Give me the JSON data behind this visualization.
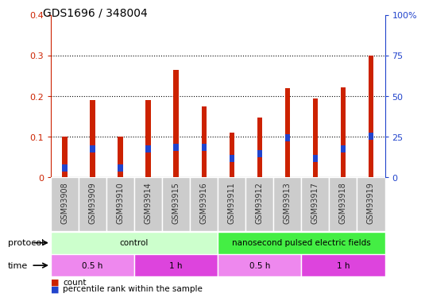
{
  "title": "GDS1696 / 348004",
  "samples": [
    "GSM93908",
    "GSM93909",
    "GSM93910",
    "GSM93914",
    "GSM93915",
    "GSM93916",
    "GSM93911",
    "GSM93912",
    "GSM93913",
    "GSM93917",
    "GSM93918",
    "GSM93919"
  ],
  "count_values": [
    0.1,
    0.19,
    0.1,
    0.19,
    0.265,
    0.175,
    0.11,
    0.148,
    0.22,
    0.195,
    0.222,
    0.3
  ],
  "percentile_bottom": [
    0.015,
    0.062,
    0.015,
    0.062,
    0.065,
    0.065,
    0.037,
    0.05,
    0.088,
    0.037,
    0.062,
    0.092
  ],
  "percentile_height": [
    0.018,
    0.018,
    0.018,
    0.018,
    0.018,
    0.018,
    0.018,
    0.018,
    0.018,
    0.018,
    0.018,
    0.018
  ],
  "count_color": "#cc2200",
  "percentile_color": "#2244cc",
  "bar_width": 0.18,
  "ylim_left": [
    0,
    0.4
  ],
  "ylim_right": [
    0,
    100
  ],
  "yticks_left": [
    0,
    0.1,
    0.2,
    0.3,
    0.4
  ],
  "yticks_right": [
    0,
    25,
    50,
    75,
    100
  ],
  "ytick_labels_left": [
    "0",
    "0.1",
    "0.2",
    "0.3",
    "0.4"
  ],
  "ytick_labels_right": [
    "0",
    "25",
    "50",
    "75",
    "100%"
  ],
  "bg_color": "#ffffff",
  "protocol_row": [
    {
      "label": "control",
      "start": 0,
      "end": 6,
      "color": "#ccffcc"
    },
    {
      "label": "nanosecond pulsed electric fields",
      "start": 6,
      "end": 12,
      "color": "#44ee44"
    }
  ],
  "time_row": [
    {
      "label": "0.5 h",
      "start": 0,
      "end": 3,
      "color": "#ee88ee"
    },
    {
      "label": "1 h",
      "start": 3,
      "end": 6,
      "color": "#dd44dd"
    },
    {
      "label": "0.5 h",
      "start": 6,
      "end": 9,
      "color": "#ee88ee"
    },
    {
      "label": "1 h",
      "start": 9,
      "end": 12,
      "color": "#dd44dd"
    }
  ],
  "row_label_protocol": "protocol",
  "row_label_time": "time",
  "legend_count": "count",
  "legend_percentile": "percentile rank within the sample",
  "xlabel_color": "#cc2200",
  "ylabel_right_color": "#2244cc",
  "tick_label_bg": "#cccccc",
  "tick_label_border": "#aaaaaa"
}
